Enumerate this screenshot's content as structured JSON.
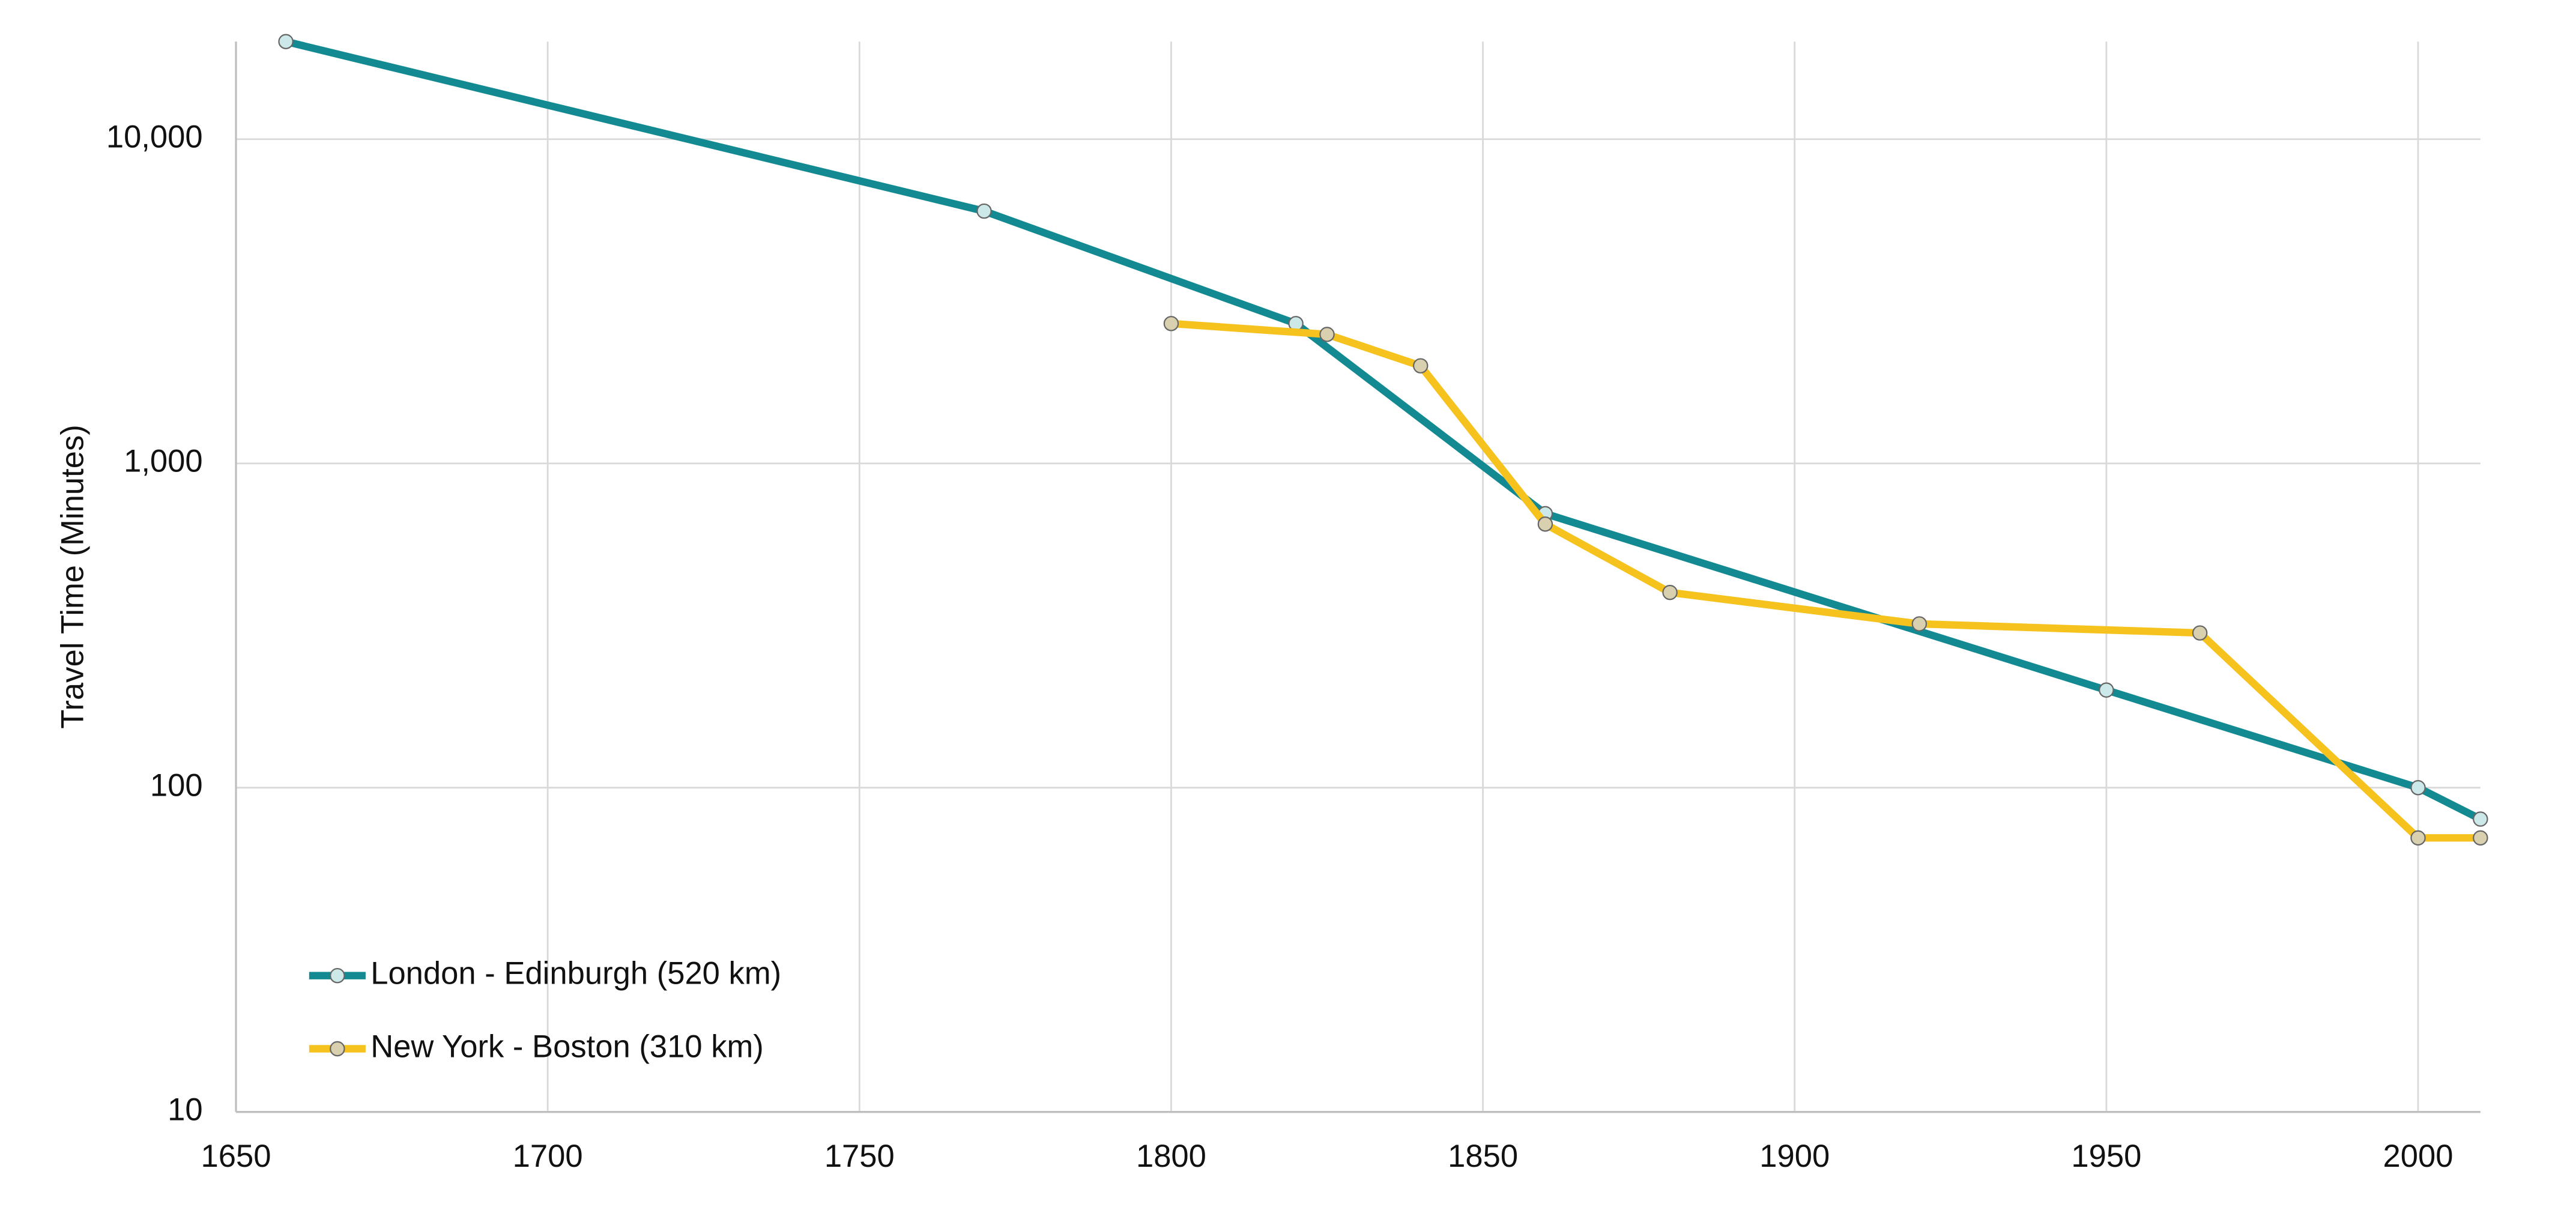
{
  "chart_data": {
    "type": "line",
    "y_label": "Travel Time (Minutes)",
    "log_y": true,
    "grid": true,
    "legend": "lower left",
    "xlim": [
      1650,
      2010
    ],
    "xticks": [
      1650,
      1700,
      1750,
      1800,
      1850,
      1900,
      1950,
      2000
    ],
    "ylim": [
      10,
      20000
    ],
    "yticks": [
      10,
      100,
      {
        "value": 1000,
        "label": "1,000"
      },
      {
        "value": 10000,
        "label": "10,000"
      }
    ],
    "series": [
      {
        "name": "London - Edinburgh (520 km)",
        "color": "#138a92",
        "marker_color": "#cde8e8",
        "x": [
          1658,
          1770,
          1820,
          1860,
          1950,
          2000,
          2010
        ],
        "values": [
          20000,
          6000,
          2700,
          700,
          200,
          100,
          80
        ]
      },
      {
        "name": "New York - Boston (310 km)",
        "color": "#f5c21e",
        "marker_color": "#d8d0ae",
        "x": [
          1800,
          1825,
          1840,
          1860,
          1880,
          1920,
          1965,
          2000,
          2010
        ],
        "values": [
          2700,
          2500,
          2000,
          650,
          400,
          320,
          300,
          70,
          70
        ]
      }
    ]
  }
}
